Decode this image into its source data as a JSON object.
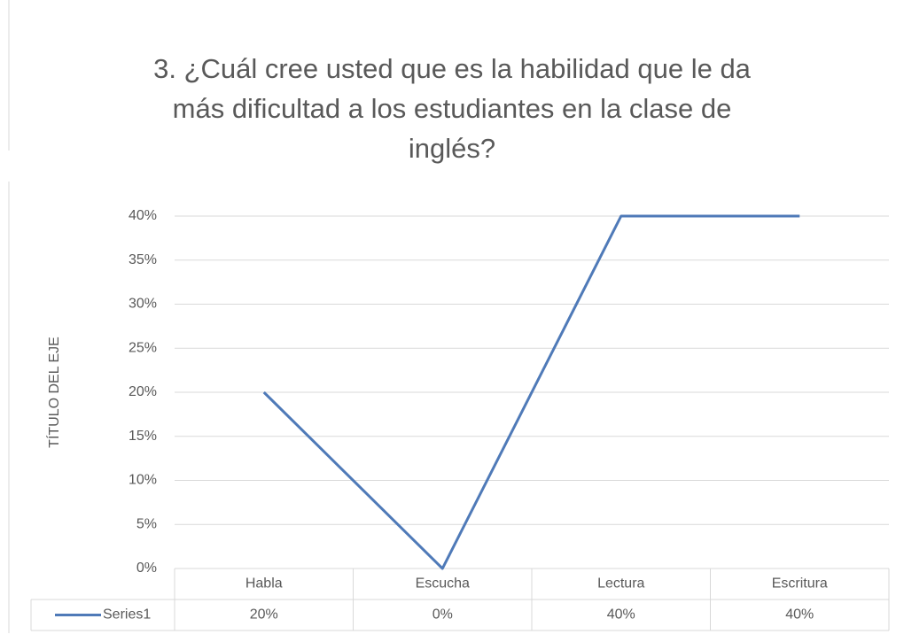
{
  "chart_data": {
    "type": "line",
    "title": "3. ¿Cuál cree usted que es la habilidad que le da más dificultad a los estudiantes en la clase de inglés?",
    "y_label": "TÍTULO DEL EJE",
    "categories": [
      "Habla",
      "Escucha",
      "Lectura",
      "Escritura"
    ],
    "series": [
      {
        "name": "Series1",
        "color": "#4f7ab8",
        "values": [
          20,
          0,
          40,
          40
        ],
        "value_labels": [
          "20%",
          "0%",
          "40%",
          "40%"
        ]
      }
    ],
    "ylim": [
      0,
      40
    ],
    "yticks": [
      {
        "value": 0,
        "label": "0%"
      },
      {
        "value": 5,
        "label": "5%"
      },
      {
        "value": 10,
        "label": "10%"
      },
      {
        "value": 15,
        "label": "15%"
      },
      {
        "value": 20,
        "label": "20%"
      },
      {
        "value": 25,
        "label": "25%"
      },
      {
        "value": 30,
        "label": "30%"
      },
      {
        "value": 35,
        "label": "35%"
      },
      {
        "value": 40,
        "label": "40%"
      }
    ],
    "grid": true
  }
}
